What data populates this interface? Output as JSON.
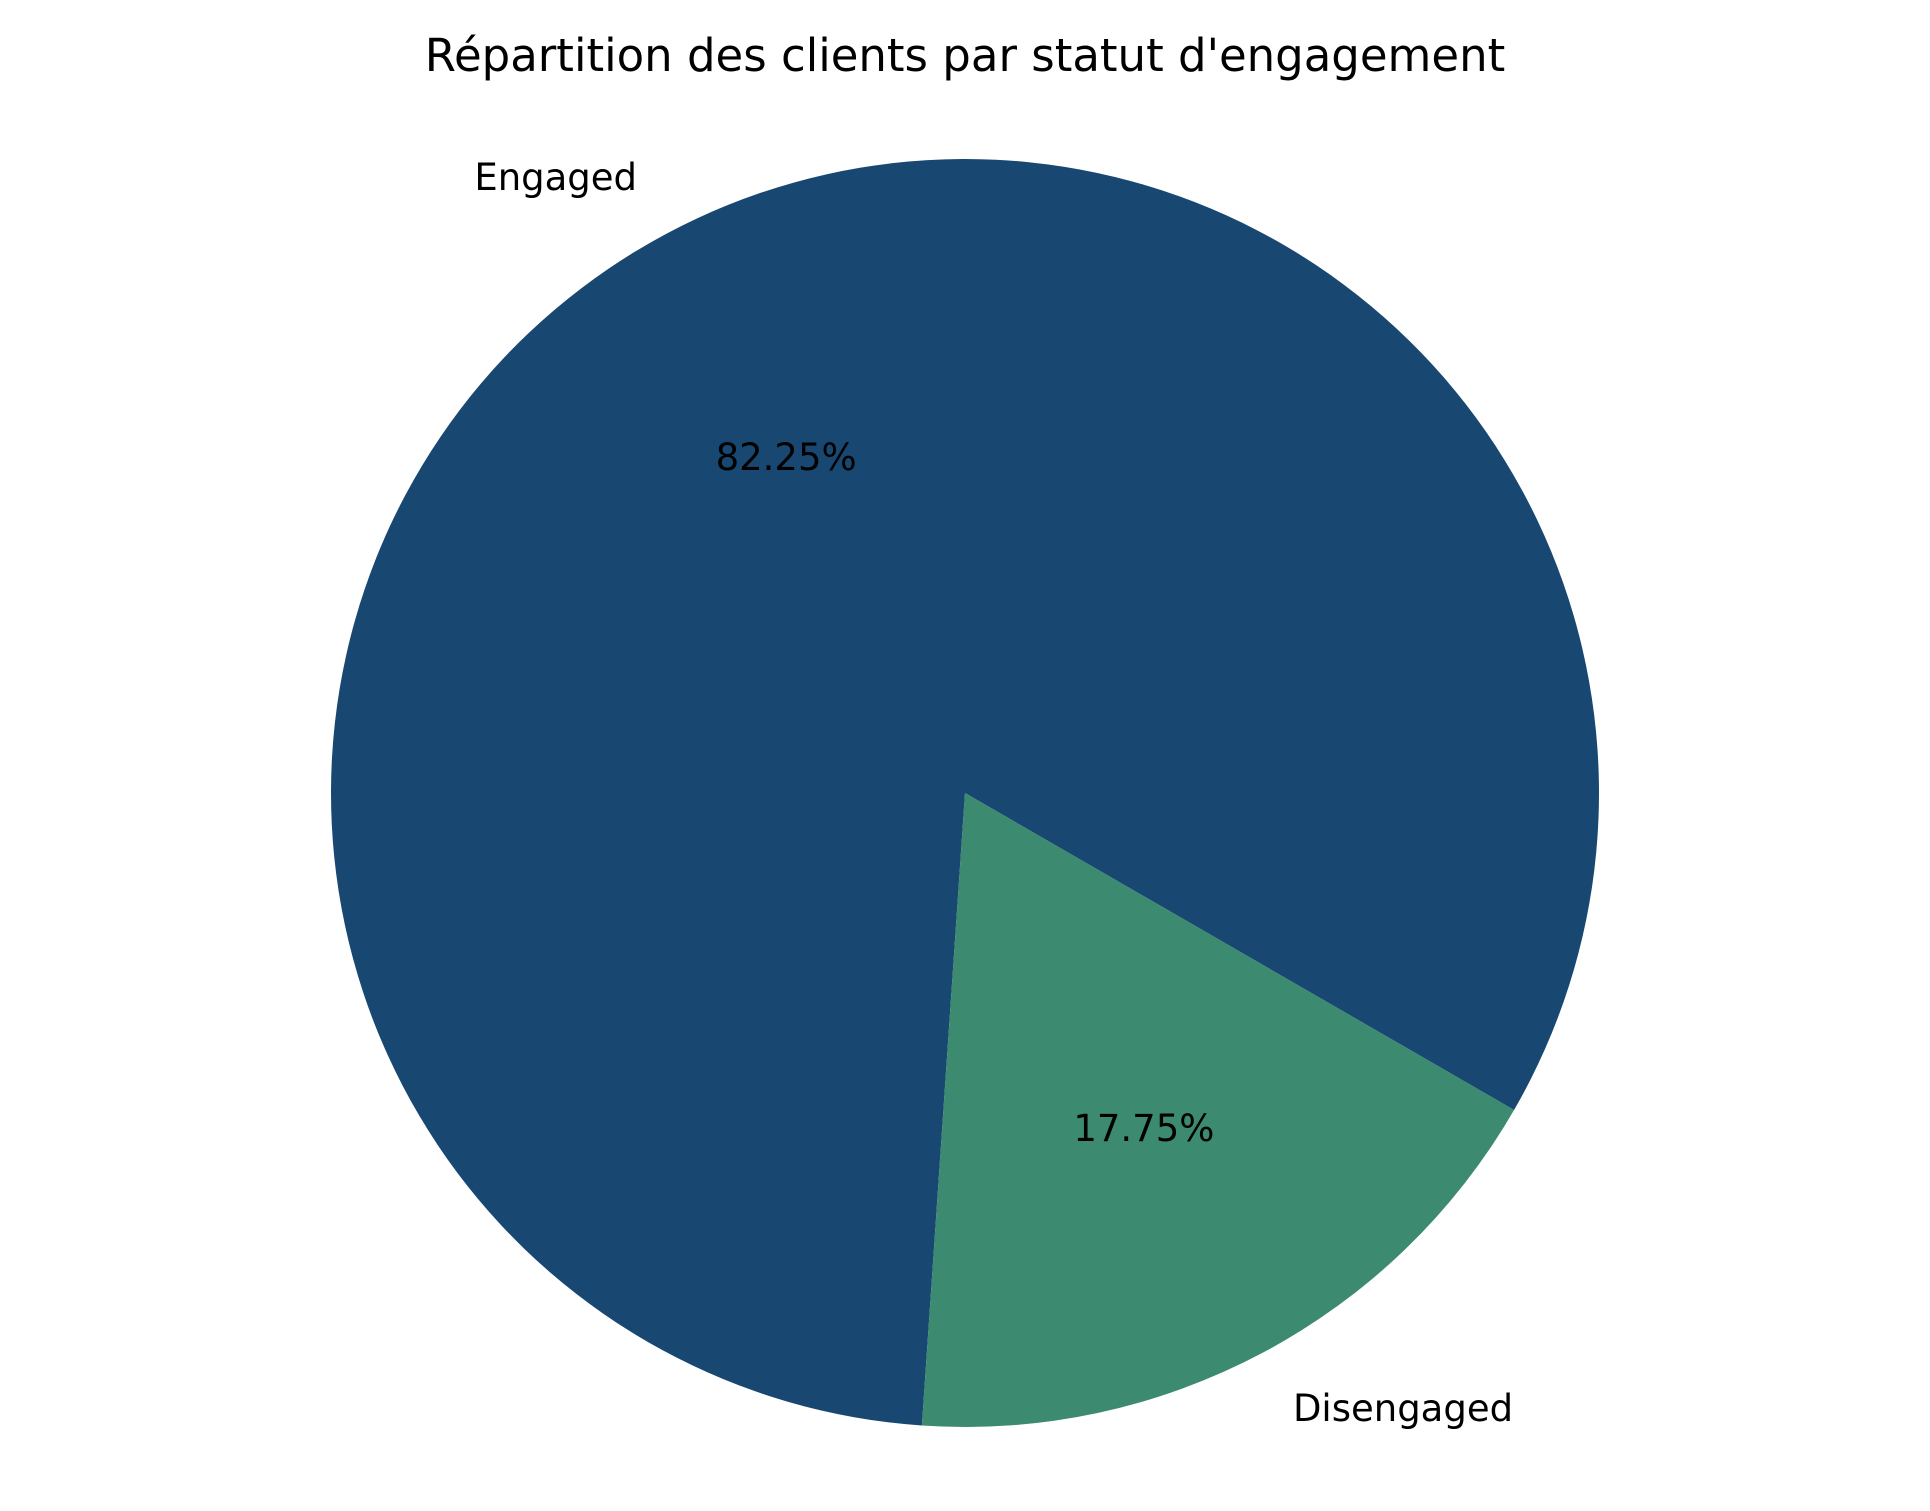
{
  "chart_data": {
    "type": "pie",
    "title": "Répartition des clients par statut d'engagement",
    "categories": [
      "Engaged",
      "Disengaged"
    ],
    "values": [
      82.25,
      17.75
    ],
    "value_labels": [
      "82.25%",
      "17.75%"
    ],
    "colors": [
      "#184872",
      "#3c8a6f"
    ],
    "legend": "none"
  }
}
